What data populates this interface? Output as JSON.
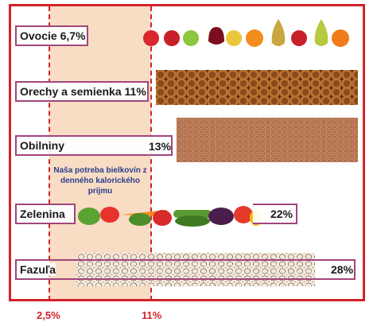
{
  "chart_data": {
    "type": "bar",
    "categories": [
      "Ovocie",
      "Orechy a semienka",
      "Obilniny",
      "Zelenina",
      "Fazuľa"
    ],
    "values": [
      6.7,
      11,
      13,
      22,
      28
    ],
    "labels": [
      "Ovocie 6,7%",
      "Orechy a semienka 11%",
      "Obilniny",
      "Zelenina",
      "Fazuľa"
    ],
    "value_labels": [
      "",
      "",
      "13%",
      "22%",
      "28%"
    ],
    "reference_lines": [
      {
        "value": 2.5,
        "label": "2,5%"
      },
      {
        "value": 11,
        "label": "11%"
      }
    ],
    "reference_zone_note": "Naša potreba bielkovín z denného kalorického príjmu",
    "colors": {
      "frame": "#d42229",
      "zone": "#f9dcc4",
      "label_border": "#a0457c",
      "note": "#2a3f8e"
    }
  }
}
